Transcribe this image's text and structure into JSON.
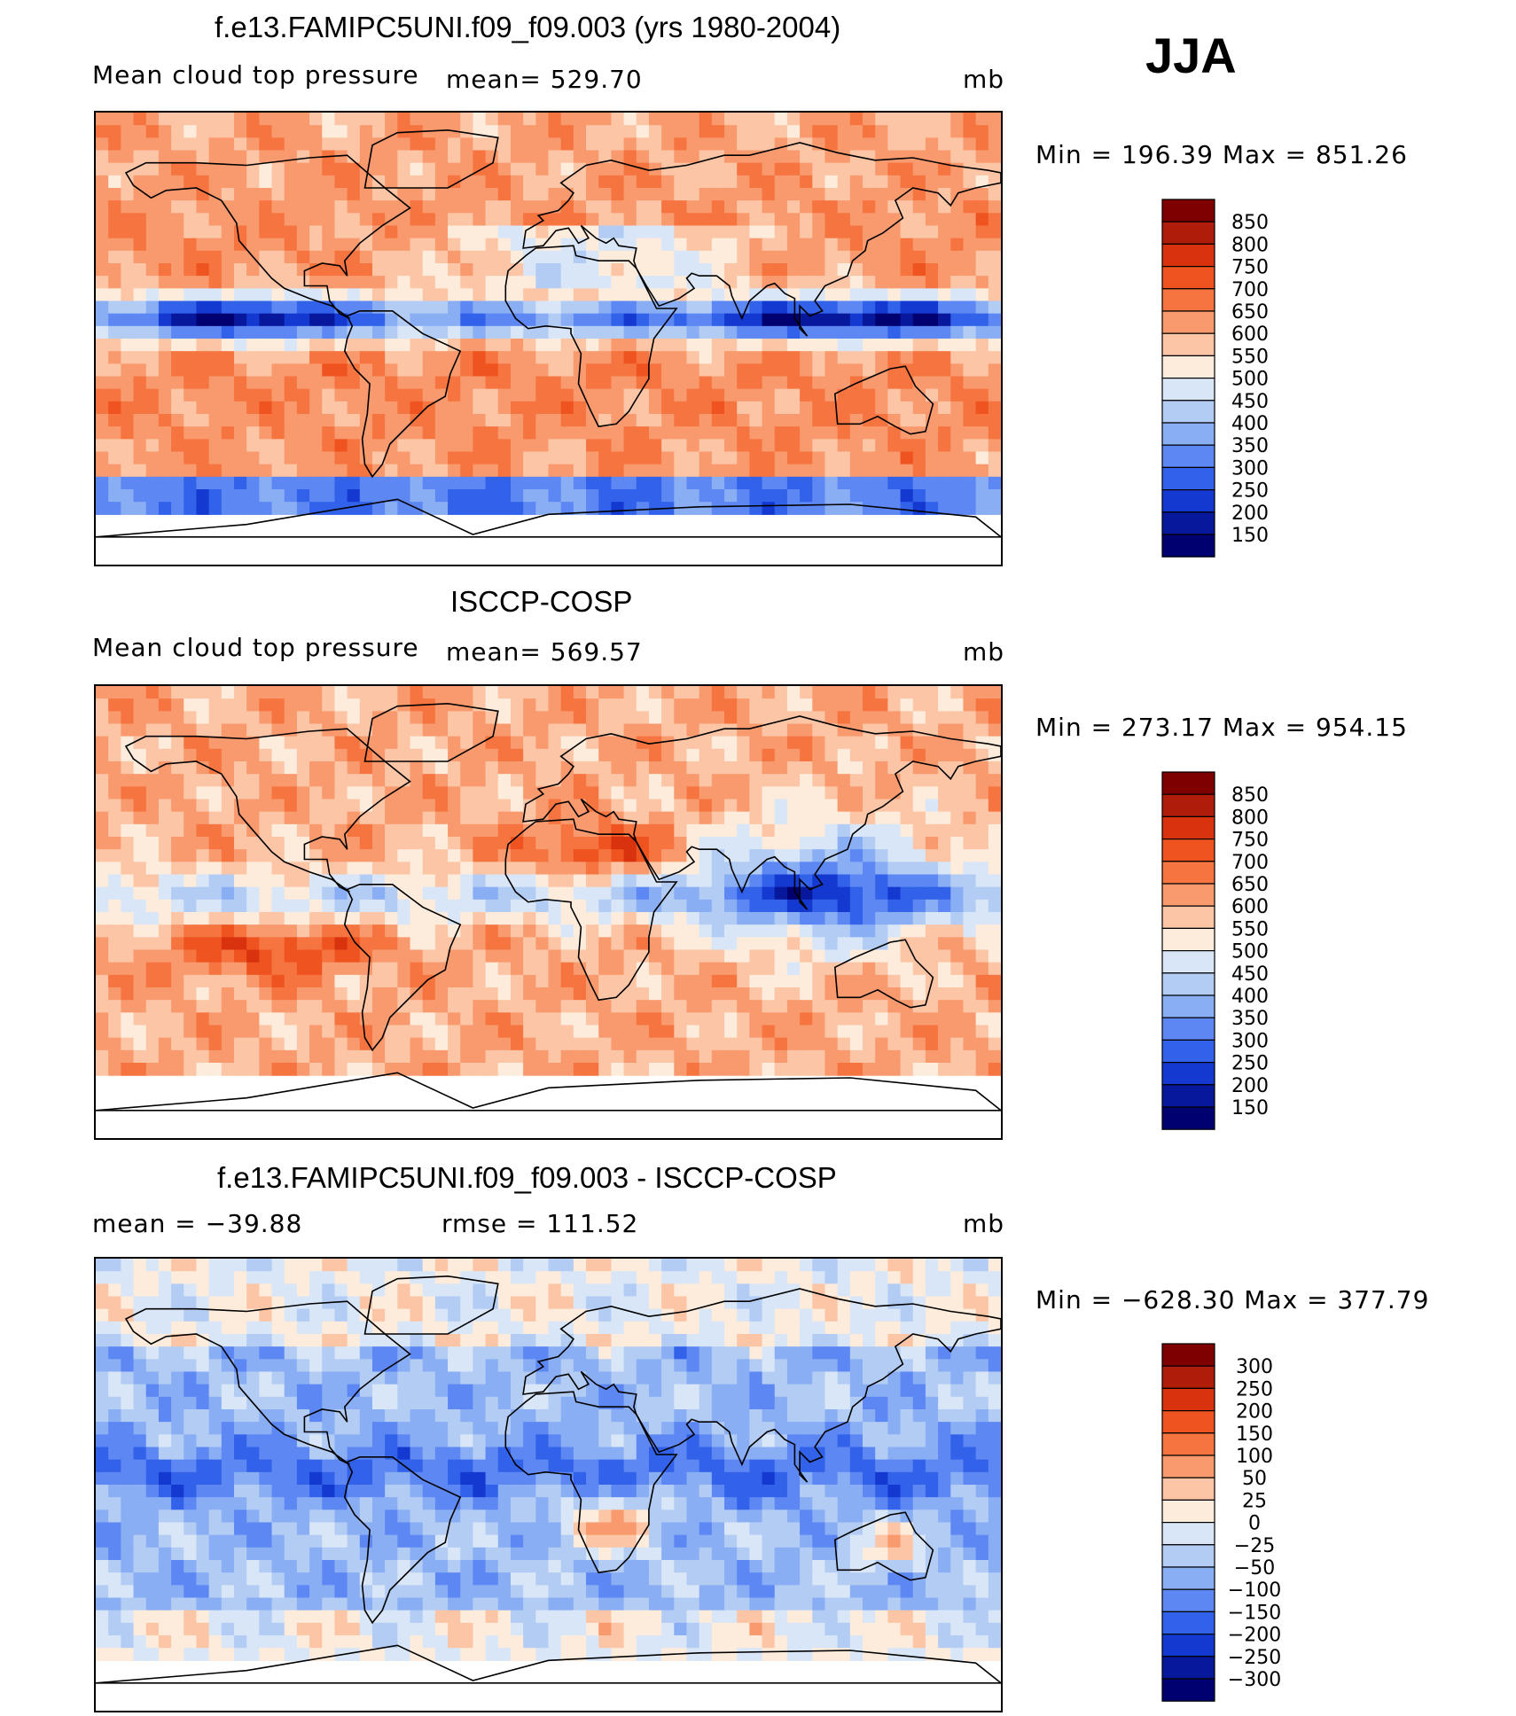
{
  "season": "JJA",
  "panels": [
    {
      "title": "f.e13.FAMIPC5UNI.f09_f09.003 (yrs 1980-2004)",
      "left_label": "Mean cloud top pressure",
      "mid_label": "mean=  529.70",
      "units": "mb",
      "minmax": "Min  =  196.39  Max  =  851.26"
    },
    {
      "title": "ISCCP-COSP",
      "left_label": "Mean cloud top pressure",
      "mid_label": "mean=  569.57",
      "units": "mb",
      "minmax": "Min  =  273.17  Max  =  954.15"
    },
    {
      "title": "f.e13.FAMIPC5UNI.f09_f09.003 - ISCCP-COSP",
      "left_label": "mean  =  −39.88",
      "mid_label": "rmse  =  111.52",
      "units": "mb",
      "minmax": "Min  =  −628.30  Max  =  377.79"
    }
  ],
  "chart_data": [
    {
      "type": "heatmap",
      "title": "f.e13.FAMIPC5UNI.f09_f09.003 (yrs 1980-2004)",
      "variable": "Mean cloud top pressure",
      "units": "mb",
      "mean": 529.7,
      "min": 196.39,
      "max": 851.26,
      "colorbar_levels": [
        850,
        800,
        750,
        700,
        650,
        600,
        550,
        500,
        450,
        400,
        350,
        300,
        250,
        200,
        150
      ]
    },
    {
      "type": "heatmap",
      "title": "ISCCP-COSP",
      "variable": "Mean cloud top pressure",
      "units": "mb",
      "mean": 569.57,
      "min": 273.17,
      "max": 954.15,
      "colorbar_levels": [
        850,
        800,
        750,
        700,
        650,
        600,
        550,
        500,
        450,
        400,
        350,
        300,
        250,
        200,
        150
      ]
    },
    {
      "type": "heatmap",
      "title": "f.e13.FAMIPC5UNI.f09_f09.003 - ISCCP-COSP",
      "units": "mb",
      "mean": -39.88,
      "rmse": 111.52,
      "min": -628.3,
      "max": 377.79,
      "colorbar_levels": [
        300,
        250,
        200,
        150,
        100,
        50,
        25,
        0,
        -25,
        -50,
        -100,
        -150,
        -200,
        -250,
        -300
      ]
    }
  ],
  "colorbar_labels": [
    [
      "850",
      "800",
      "750",
      "700",
      "650",
      "600",
      "550",
      "500",
      "450",
      "400",
      "350",
      "300",
      "250",
      "200",
      "150"
    ],
    [
      "850",
      "800",
      "750",
      "700",
      "650",
      "600",
      "550",
      "500",
      "450",
      "400",
      "350",
      "300",
      "250",
      "200",
      "150"
    ],
    [
      "300",
      "250",
      "200",
      "150",
      "100",
      "50",
      "25",
      "0",
      "−25",
      "−50",
      "−100",
      "−150",
      "−200",
      "−250",
      "−300"
    ]
  ],
  "colors": [
    "#7f0000",
    "#b01c0a",
    "#d8330e",
    "#ef5420",
    "#f5743f",
    "#f89a6e",
    "#fcc5a6",
    "#fdebdb",
    "#d8e6f7",
    "#b3ccf4",
    "#8aaef4",
    "#5d87f2",
    "#3262ea",
    "#1339d1",
    "#08189d",
    "#000070"
  ]
}
